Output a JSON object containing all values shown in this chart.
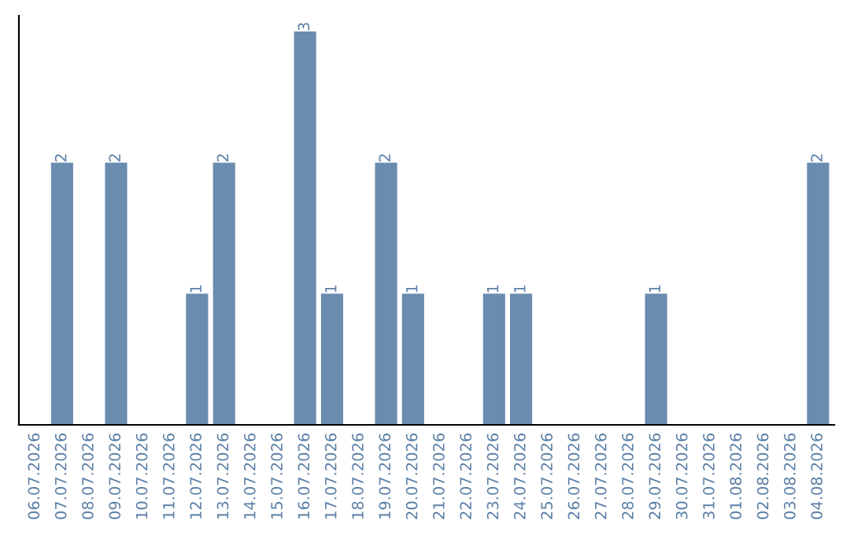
{
  "chart_data": {
    "type": "bar",
    "categories": [
      "06.07.2026",
      "07.07.2026",
      "08.07.2026",
      "09.07.2026",
      "10.07.2026",
      "11.07.2026",
      "12.07.2026",
      "13.07.2026",
      "14.07.2026",
      "15.07.2026",
      "16.07.2026",
      "17.07.2026",
      "18.07.2026",
      "19.07.2026",
      "20.07.2026",
      "21.07.2026",
      "22.07.2026",
      "23.07.2026",
      "24.07.2026",
      "25.07.2026",
      "26.07.2026",
      "27.07.2026",
      "28.07.2026",
      "29.07.2026",
      "30.07.2026",
      "31.07.2026",
      "01.08.2026",
      "02.08.2026",
      "03.08.2026",
      "04.08.2026"
    ],
    "values": [
      0,
      2,
      0,
      2,
      0,
      0,
      1,
      2,
      0,
      0,
      3,
      1,
      0,
      2,
      1,
      0,
      0,
      1,
      1,
      0,
      0,
      0,
      0,
      1,
      0,
      0,
      0,
      0,
      0,
      2
    ],
    "value_labels": [
      null,
      "2",
      null,
      "2",
      null,
      null,
      "1",
      "2",
      null,
      null,
      "3",
      "1",
      null,
      "2",
      "1",
      null,
      null,
      "1",
      "1",
      null,
      null,
      null,
      null,
      "1",
      null,
      null,
      null,
      null,
      null,
      "2"
    ],
    "color": "#6a8caf",
    "relative": false,
    "tick_labels": "x",
    "grid": false,
    "legend": false
  }
}
